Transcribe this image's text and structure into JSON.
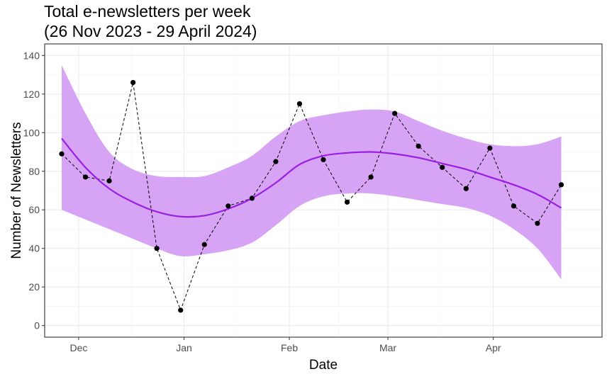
{
  "chart_data": {
    "type": "line",
    "title_line1": "Total e-newsletters per week",
    "title_line2": "(26 Nov 2023 - 29 April 2024)",
    "xlabel": "Date",
    "ylabel": "Number of Newsletters",
    "ylim": [
      -6,
      146
    ],
    "xlim": [
      "2023-11-21",
      "2024-05-03"
    ],
    "y_ticks": [
      0,
      20,
      40,
      60,
      80,
      100,
      120,
      140
    ],
    "x_ticks": [
      {
        "date": "2023-12-01",
        "label": "Dec"
      },
      {
        "date": "2024-01-01",
        "label": "Jan"
      },
      {
        "date": "2024-02-01",
        "label": "Feb"
      },
      {
        "date": "2024-03-01",
        "label": "Mar"
      },
      {
        "date": "2024-04-01",
        "label": "Apr"
      }
    ],
    "grid": true,
    "colors": {
      "band": "#d6a3f5",
      "smooth_line": "#9a1fe2",
      "points": "#000000",
      "grid_major": "#ebebeb",
      "grid_minor": "#f5f5f5",
      "border": "#333333"
    },
    "series": [
      {
        "kind": "points-dashed",
        "x": [
          "2023-11-26",
          "2023-12-03",
          "2023-12-10",
          "2023-12-17",
          "2023-12-24",
          "2023-12-31",
          "2024-01-07",
          "2024-01-14",
          "2024-01-21",
          "2024-01-28",
          "2024-02-04",
          "2024-02-11",
          "2024-02-18",
          "2024-02-25",
          "2024-03-03",
          "2024-03-10",
          "2024-03-17",
          "2024-03-24",
          "2024-03-31",
          "2024-04-07",
          "2024-04-14",
          "2024-04-21"
        ],
        "y": [
          89,
          77,
          75,
          126,
          40,
          8,
          42,
          62,
          66,
          85,
          115,
          86,
          64,
          77,
          110,
          93,
          82,
          71,
          92,
          62,
          53,
          73
        ]
      },
      {
        "kind": "smooth",
        "x": [
          "2023-11-26",
          "2023-12-03",
          "2023-12-10",
          "2023-12-17",
          "2023-12-24",
          "2023-12-31",
          "2024-01-07",
          "2024-01-14",
          "2024-01-21",
          "2024-01-28",
          "2024-02-04",
          "2024-02-11",
          "2024-02-18",
          "2024-02-25",
          "2024-03-03",
          "2024-03-10",
          "2024-03-17",
          "2024-03-24",
          "2024-03-31",
          "2024-04-07",
          "2024-04-14",
          "2024-04-21"
        ],
        "y": [
          97,
          82,
          71,
          64,
          59,
          56.5,
          57,
          60.5,
          66,
          74,
          83.5,
          88,
          89.5,
          90,
          89,
          87,
          84,
          81,
          77,
          73,
          68,
          61
        ],
        "lower": [
          60,
          55,
          50,
          45,
          40,
          36,
          37,
          39,
          43,
          52,
          62,
          67,
          68.5,
          68.5,
          67,
          65,
          63,
          61,
          57,
          50,
          40,
          24
        ],
        "upper": [
          135,
          110,
          90,
          81,
          77.5,
          77,
          77.5,
          82,
          88,
          98,
          106,
          109,
          111,
          112,
          111,
          106,
          101,
          97,
          94,
          93,
          94,
          98
        ]
      }
    ]
  }
}
